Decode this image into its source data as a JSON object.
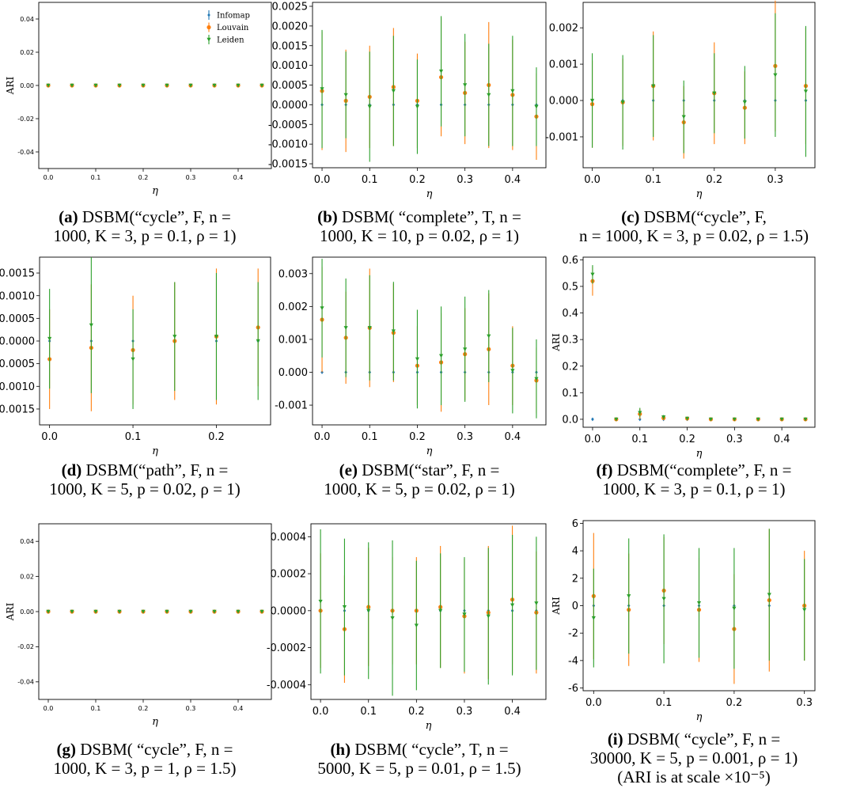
{
  "legend": [
    "Infomap",
    "Louvain",
    "Leiden"
  ],
  "colors": {
    "Infomap": "#1f77b4",
    "Louvain": "#ff7f0e",
    "Leiden": "#2ca02c"
  },
  "captions": [
    {
      "label": "(a)",
      "line1": "DSBM(“cycle”, F, n =",
      "line2": "1000, K = 3, p = 0.1, ρ = 1)"
    },
    {
      "label": "(b)",
      "line1": "DSBM( “complete”, T, n =",
      "line2": "1000, K = 10, p = 0.02, ρ = 1)"
    },
    {
      "label": "(c)",
      "line1": "DSBM(“cycle”, F,",
      "line2": "n = 1000, K = 3, p = 0.02, ρ = 1.5)"
    },
    {
      "label": "(d)",
      "line1": "DSBM(“path”, F, n =",
      "line2": "1000, K = 5, p = 0.02, ρ = 1)"
    },
    {
      "label": "(e)",
      "line1": "DSBM(“star”, F, n =",
      "line2": "1000, K = 5, p = 0.02, ρ = 1)"
    },
    {
      "label": "(f)",
      "line1": "DSBM(“complete”, F, n =",
      "line2": "1000, K = 3, p = 0.1, ρ = 1)"
    },
    {
      "label": "(g)",
      "line1": "DSBM( “cycle”, F, n =",
      "line2": "1000, K = 3, p = 1, ρ = 1.5)"
    },
    {
      "label": "(h)",
      "line1": "DSBM( “cycle”, T, n =",
      "line2": "5000, K = 5, p = 0.01, ρ = 1.5)"
    },
    {
      "label": "(i)",
      "line1": "DSBM( “cycle”, F, n =",
      "line2": "30000, K = 5, p = 0.001, ρ = 1)",
      "line3": "(ARI is at scale ×10⁻⁵)"
    }
  ],
  "chart_data": [
    {
      "type": "scatter",
      "title": "",
      "xlabel": "η",
      "ylabel": "ARI",
      "x": [
        0.0,
        0.05,
        0.1,
        0.15,
        0.2,
        0.25,
        0.3,
        0.35,
        0.4,
        0.45
      ],
      "xlim": [
        -0.02,
        0.47
      ],
      "ylim": [
        -0.05,
        0.05
      ],
      "xticks": [
        "0.0",
        "0.1",
        "0.2",
        "0.3",
        "0.4"
      ],
      "yticks": [
        "0.04",
        "0.02",
        "0.00",
        "-0.02",
        "-0.04"
      ],
      "series": [
        {
          "name": "Infomap",
          "values": [
            0,
            0,
            0,
            0,
            0,
            0,
            0,
            0,
            0,
            0
          ],
          "err": [
            0,
            0,
            0,
            0,
            0,
            0,
            0,
            0,
            0,
            0
          ]
        },
        {
          "name": "Louvain",
          "values": [
            0,
            0,
            0,
            0,
            0,
            0,
            0,
            0,
            0,
            0
          ],
          "err": [
            0,
            0,
            0,
            0,
            0,
            0,
            0,
            0,
            0,
            0
          ]
        },
        {
          "name": "Leiden",
          "values": [
            0,
            0,
            0,
            0,
            0,
            0,
            0,
            0,
            0,
            0
          ],
          "err": [
            0,
            0,
            0,
            0,
            0,
            0,
            0,
            0,
            0,
            0
          ]
        }
      ],
      "legend": "top-right"
    },
    {
      "type": "scatter",
      "title": "",
      "xlabel": "η",
      "ylabel": "",
      "x": [
        0.0,
        0.05,
        0.1,
        0.15,
        0.2,
        0.25,
        0.3,
        0.35,
        0.4,
        0.45
      ],
      "xlim": [
        -0.02,
        0.47
      ],
      "ylim": [
        -0.0016,
        0.0026
      ],
      "xticks": [
        "0.0",
        "0.1",
        "0.2",
        "0.3",
        "0.4"
      ],
      "yticks": [
        "0.0025",
        "0.0020",
        "0.0015",
        "0.0010",
        "0.0005",
        "0.0000",
        "-0.0005",
        "-0.0010",
        "-0.0015"
      ],
      "series": [
        {
          "name": "Infomap",
          "values": [
            0,
            0,
            0,
            0,
            0,
            0,
            0,
            0,
            0,
            0
          ],
          "err": [
            0,
            0,
            0,
            0,
            0,
            0,
            0,
            0,
            0,
            0
          ]
        },
        {
          "name": "Louvain",
          "values": [
            0.00035,
            0.0001,
            0.0002,
            0.00045,
            0.0001,
            0.0007,
            0.0003,
            0.0005,
            0.00025,
            -0.0003
          ],
          "err": [
            0.0015,
            0.0013,
            0.0013,
            0.0015,
            0.0012,
            0.0015,
            0.0013,
            0.0016,
            0.0014,
            0.0011
          ]
        },
        {
          "name": "Leiden",
          "values": [
            0.0004,
            0.00025,
            -5e-05,
            0.00035,
            -5e-05,
            0.00085,
            0.0005,
            0.00025,
            0.00035,
            -5e-05
          ],
          "err": [
            0.0015,
            0.0011,
            0.0014,
            0.0014,
            0.0012,
            0.0014,
            0.0013,
            0.0013,
            0.0014,
            0.001
          ]
        }
      ]
    },
    {
      "type": "scatter",
      "title": "",
      "xlabel": "η",
      "ylabel": "",
      "x": [
        0.0,
        0.05,
        0.1,
        0.15,
        0.2,
        0.25,
        0.3,
        0.35
      ],
      "xlim": [
        -0.015,
        0.365
      ],
      "ylim": [
        -0.00185,
        0.0027
      ],
      "xticks": [
        "0.0",
        "0.1",
        "0.2",
        "0.3"
      ],
      "yticks": [
        "0.002",
        "0.001",
        "0.000",
        "-0.001"
      ],
      "series": [
        {
          "name": "Infomap",
          "values": [
            0,
            0,
            0,
            0,
            0,
            0,
            0,
            0
          ],
          "err": [
            0,
            0,
            0,
            0,
            0,
            0,
            0,
            0
          ]
        },
        {
          "name": "Louvain",
          "values": [
            -0.0001,
            -5e-05,
            0.0004,
            -0.0006,
            0.0002,
            -0.0002,
            0.00095,
            0.0004
          ],
          "err": [
            0.0012,
            0.0012,
            0.0015,
            0.001,
            0.0014,
            0.001,
            0.0018,
            0.0016
          ]
        },
        {
          "name": "Leiden",
          "values": [
            0,
            -5e-05,
            0.0004,
            -0.00045,
            0.0002,
            -5e-05,
            0.0007,
            0.00025
          ],
          "err": [
            0.0013,
            0.0013,
            0.0014,
            0.001,
            0.0011,
            0.001,
            0.0017,
            0.0018
          ]
        }
      ]
    },
    {
      "type": "scatter",
      "title": "",
      "xlabel": "η",
      "ylabel": "",
      "x": [
        0.0,
        0.05,
        0.1,
        0.15,
        0.2,
        0.25
      ],
      "xlim": [
        -0.012,
        0.265
      ],
      "ylim": [
        -0.00185,
        0.00185
      ],
      "xticks": [
        "0.0",
        "0.1",
        "0.2"
      ],
      "yticks": [
        "0.0015",
        "0.0010",
        "0.0005",
        "0.0000",
        "-0.0005",
        "-0.0010",
        "-0.0015"
      ],
      "series": [
        {
          "name": "Infomap",
          "values": [
            0,
            0,
            0,
            0,
            0,
            0
          ],
          "err": [
            0,
            0,
            0,
            0,
            0,
            0
          ]
        },
        {
          "name": "Louvain",
          "values": [
            -0.0004,
            -0.00015,
            -0.0002,
            0.0,
            0.0001,
            0.0003
          ],
          "err": [
            0.0011,
            0.0014,
            0.0012,
            0.0013,
            0.0015,
            0.0013
          ]
        },
        {
          "name": "Leiden",
          "values": [
            5e-05,
            0.00035,
            -0.0004,
            0.0001,
            0.0001,
            0.0
          ],
          "err": [
            0.0011,
            0.0015,
            0.0011,
            0.0012,
            0.0014,
            0.0013
          ]
        }
      ]
    },
    {
      "type": "scatter",
      "title": "",
      "xlabel": "η",
      "ylabel": "",
      "x": [
        0.0,
        0.05,
        0.1,
        0.15,
        0.2,
        0.25,
        0.3,
        0.35,
        0.4,
        0.45
      ],
      "xlim": [
        -0.02,
        0.47
      ],
      "ylim": [
        -0.0016,
        0.0035
      ],
      "xticks": [
        "0.0",
        "0.1",
        "0.2",
        "0.3",
        "0.4"
      ],
      "yticks": [
        "0.003",
        "0.002",
        "0.001",
        "0.000",
        "-0.001"
      ],
      "series": [
        {
          "name": "Infomap",
          "values": [
            0,
            0,
            0,
            0,
            0,
            0,
            0,
            0,
            0,
            0
          ],
          "err": [
            0,
            0,
            0,
            0,
            0,
            0,
            0,
            0,
            0,
            0
          ]
        },
        {
          "name": "Louvain",
          "values": [
            0.0016,
            0.00105,
            0.00135,
            0.0012,
            0.0002,
            0.0003,
            0.00055,
            0.0007,
            0.0002,
            -0.00025
          ],
          "err": [
            0.0016,
            0.0014,
            0.0018,
            0.0015,
            0.0012,
            0.0015,
            0.0014,
            0.0017,
            0.0012,
            0.001
          ]
        },
        {
          "name": "Leiden",
          "values": [
            0.00195,
            0.00135,
            0.00135,
            0.00125,
            0.0004,
            0.0005,
            0.0007,
            0.0011,
            5e-05,
            -0.0002
          ],
          "err": [
            0.0015,
            0.0015,
            0.0016,
            0.0015,
            0.0015,
            0.0015,
            0.0016,
            0.0014,
            0.0013,
            0.0012
          ]
        }
      ]
    },
    {
      "type": "scatter",
      "title": "",
      "xlabel": "η",
      "ylabel": "ARI",
      "x": [
        0.0,
        0.05,
        0.1,
        0.15,
        0.2,
        0.25,
        0.3,
        0.35,
        0.4,
        0.45
      ],
      "xlim": [
        -0.02,
        0.47
      ],
      "ylim": [
        -0.03,
        0.61
      ],
      "xticks": [
        "0.0",
        "0.1",
        "0.2",
        "0.3",
        "0.4"
      ],
      "yticks": [
        "0.6",
        "0.5",
        "0.4",
        "0.3",
        "0.2",
        "0.1",
        "0.0"
      ],
      "series": [
        {
          "name": "Infomap",
          "values": [
            0,
            0,
            0,
            0,
            0,
            0,
            0,
            0,
            0,
            0
          ],
          "err": [
            0,
            0,
            0,
            0,
            0,
            0,
            0,
            0,
            0,
            0
          ]
        },
        {
          "name": "Louvain",
          "values": [
            0.52,
            0.0,
            0.02,
            0.005,
            0.003,
            0.0,
            0.0,
            0.0,
            0.0,
            0.0
          ],
          "err": [
            0.055,
            0.004,
            0.02,
            0.008,
            0.006,
            0.003,
            0.003,
            0.003,
            0.003,
            0.003
          ]
        },
        {
          "name": "Leiden",
          "values": [
            0.545,
            0.0,
            0.025,
            0.008,
            0.003,
            0.0,
            0.0,
            0.0,
            0.0,
            0.0
          ],
          "err": [
            0.035,
            0.003,
            0.018,
            0.008,
            0.005,
            0.003,
            0.003,
            0.003,
            0.003,
            0.003
          ]
        }
      ]
    },
    {
      "type": "scatter",
      "title": "",
      "xlabel": "η",
      "ylabel": "ARI",
      "x": [
        0.0,
        0.05,
        0.1,
        0.15,
        0.2,
        0.25,
        0.3,
        0.35,
        0.4,
        0.45
      ],
      "xlim": [
        -0.02,
        0.47
      ],
      "ylim": [
        -0.05,
        0.05
      ],
      "xticks": [
        "0.0",
        "0.1",
        "0.2",
        "0.3",
        "0.4"
      ],
      "yticks": [
        "0.04",
        "0.02",
        "0.00",
        "-0.02",
        "-0.04"
      ],
      "series": [
        {
          "name": "Infomap",
          "values": [
            0,
            0,
            0,
            0,
            0,
            0,
            0,
            0,
            0,
            0
          ],
          "err": [
            0,
            0,
            0,
            0,
            0,
            0,
            0,
            0,
            0,
            0
          ]
        },
        {
          "name": "Louvain",
          "values": [
            0,
            0,
            0,
            0,
            0,
            0,
            0,
            0,
            0,
            0
          ],
          "err": [
            0,
            0,
            0,
            0,
            0,
            0,
            0,
            0,
            0,
            0
          ]
        },
        {
          "name": "Leiden",
          "values": [
            0,
            0,
            0,
            0,
            0,
            0,
            0,
            0,
            0,
            0
          ],
          "err": [
            0,
            0,
            0,
            0,
            0,
            0,
            0,
            0,
            0,
            0
          ]
        }
      ]
    },
    {
      "type": "scatter",
      "title": "",
      "xlabel": "η",
      "ylabel": "",
      "x": [
        0.0,
        0.05,
        0.1,
        0.15,
        0.2,
        0.25,
        0.3,
        0.35,
        0.4,
        0.45
      ],
      "xlim": [
        -0.02,
        0.47
      ],
      "ylim": [
        -0.00048,
        0.00047
      ],
      "xticks": [
        "0.0",
        "0.1",
        "0.2",
        "0.3",
        "0.4"
      ],
      "yticks": [
        "0.0004",
        "0.0002",
        "0.0000",
        "-0.0002",
        "-0.0004"
      ],
      "series": [
        {
          "name": "Infomap",
          "values": [
            0,
            0,
            0,
            0,
            0,
            0,
            0,
            0,
            0,
            0
          ],
          "err": [
            0,
            0,
            0,
            0,
            0,
            0,
            0,
            0,
            0,
            0
          ]
        },
        {
          "name": "Louvain",
          "values": [
            0.0,
            -0.0001,
            2e-05,
            0.0,
            0.0,
            2e-05,
            -3e-05,
            -1e-05,
            6e-05,
            -1e-05
          ],
          "err": [
            0.00031,
            0.00029,
            0.00032,
            0.00029,
            0.00029,
            0.00033,
            0.00031,
            0.00036,
            0.0004,
            0.00033
          ]
        },
        {
          "name": "Leiden",
          "values": [
            5e-05,
            2e-05,
            0.0,
            -4e-05,
            -8e-05,
            0.0,
            -2e-05,
            -3e-05,
            3e-05,
            4e-05
          ],
          "err": [
            0.00039,
            0.00037,
            0.00037,
            0.00042,
            0.00035,
            0.00031,
            0.00031,
            0.00037,
            0.00038,
            0.00036
          ]
        }
      ]
    },
    {
      "type": "scatter",
      "title": "",
      "xlabel": "η",
      "ylabel": "ARI",
      "x": [
        0.0,
        0.05,
        0.1,
        0.15,
        0.2,
        0.25,
        0.3
      ],
      "xlim": [
        -0.015,
        0.315
      ],
      "ylim": [
        -6.2,
        6.2
      ],
      "xticks": [
        "0.0",
        "0.1",
        "0.2",
        "0.3"
      ],
      "yticks": [
        "6",
        "4",
        "2",
        "0",
        "-2",
        "-4",
        "-6"
      ],
      "series": [
        {
          "name": "Infomap",
          "values": [
            0,
            0,
            0,
            0,
            0,
            0,
            0
          ],
          "err": [
            0,
            0,
            0,
            0,
            0,
            0,
            0
          ]
        },
        {
          "name": "Louvain",
          "values": [
            0.7,
            -0.3,
            1.1,
            -0.3,
            -1.7,
            0.4,
            0.0
          ],
          "err": [
            4.6,
            4.1,
            3.9,
            3.8,
            4.0,
            5.2,
            4.0
          ]
        },
        {
          "name": "Leiden",
          "values": [
            -0.9,
            0.7,
            0.5,
            0.2,
            -0.2,
            0.8,
            -0.3
          ],
          "err": [
            3.6,
            4.2,
            4.7,
            4.0,
            4.4,
            4.8,
            3.7
          ]
        }
      ]
    }
  ]
}
